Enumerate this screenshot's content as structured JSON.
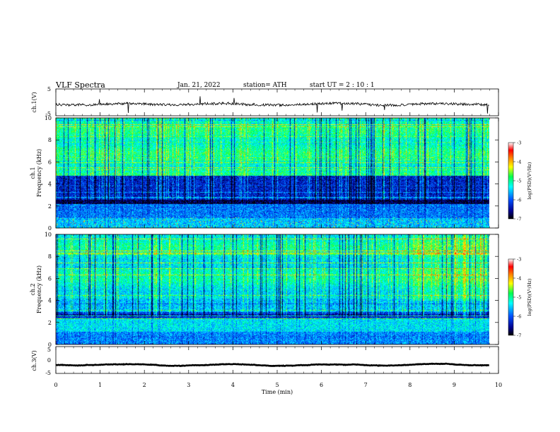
{
  "header": {
    "title": "VLF  Spectra",
    "date": "Jan. 21, 2022",
    "station": "station= ATH",
    "start": "start  UT  =   2  : 10 : 1"
  },
  "chart_data": [
    {
      "type": "line",
      "panel": "ch1-waveform",
      "ylabel": "ch.1(V)",
      "ylim": [
        -5,
        5
      ],
      "yticks": [
        "5",
        "-5"
      ],
      "xlim": [
        0,
        10
      ],
      "trace_end_min": 9.8,
      "baseline": -0.7,
      "color": "#000000"
    },
    {
      "type": "heatmap",
      "panel": "ch1-spectrogram",
      "ylabel": "Frequency  (kHz)",
      "ylabel2": "ch.1",
      "ylim": [
        0,
        10
      ],
      "yticks": [
        "0",
        "2",
        "4",
        "6",
        "8",
        "10"
      ],
      "xlim": [
        0,
        10
      ],
      "data_end_min": 9.8,
      "colorbar": {
        "label": "log(PSD)(V²/Hz)",
        "range": [
          -7,
          -3
        ],
        "ticks": [
          "-3",
          "-4",
          "-5",
          "-6",
          "-7"
        ]
      }
    },
    {
      "type": "heatmap",
      "panel": "ch2-spectrogram",
      "ylabel": "Frequency  (kHz)",
      "ylabel2": "ch.2",
      "ylim": [
        0,
        10
      ],
      "yticks": [
        "0",
        "2",
        "4",
        "6",
        "8",
        "10"
      ],
      "xlim": [
        0,
        10
      ],
      "data_end_min": 9.8,
      "colorbar": {
        "label": "log(PSD)(V²/Hz)",
        "range": [
          -7,
          -3
        ],
        "ticks": [
          "-3",
          "-4",
          "-5",
          "-6",
          "-7"
        ]
      }
    },
    {
      "type": "line",
      "panel": "ch3-waveform",
      "ylabel": "ch.3(V)",
      "ylim": [
        -5,
        5
      ],
      "yticks": [
        "5",
        "0",
        "-5"
      ],
      "xlim": [
        0,
        10
      ],
      "trace_end_min": 9.8,
      "baseline": -1.8,
      "color": "#000000"
    }
  ],
  "xaxis": {
    "label": "Time  (min)",
    "ticks": [
      "0",
      "1",
      "2",
      "3",
      "4",
      "5",
      "6",
      "7",
      "8",
      "9",
      "10"
    ]
  }
}
